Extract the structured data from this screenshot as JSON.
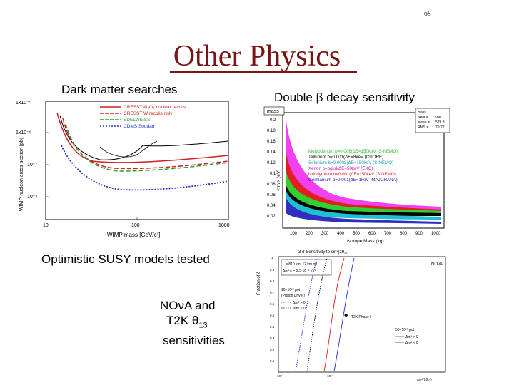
{
  "slide": {
    "page_number": "65",
    "title": "Other Physics",
    "dark_matter_label": "Dark matter searches",
    "double_beta_label": "Double β decay sensitivity",
    "susy_label": "Optimistic SUSY models tested",
    "nova_line1": "NOνA and",
    "nova_line2": "T2K θ",
    "nova_line2_sub": "13",
    "nova_line3": "sensitivities",
    "title_color": "#7a1414"
  },
  "dm_plot": {
    "y_axis_label": "WIMP-nucleon cross-section [pb]",
    "x_axis_label": "WIMP mass [GeV/c²]",
    "x_ticks": [
      "10",
      "100",
      "1000"
    ],
    "y_ticks": [
      "1x10⁻⁵",
      "1x10⁻⁶",
      "10⁻⁷",
      "10⁻⁸"
    ],
    "legend": [
      {
        "name": "CRESST Al₂O₃ nuclear recoils",
        "color": "#d02020",
        "style": "solid"
      },
      {
        "name": "CRESST W  recoils only",
        "color": "#d02020",
        "style": "dashed"
      },
      {
        "name": "EDELWEISS",
        "color": "#30a030",
        "style": "dashed"
      },
      {
        "name": "CDMS Soudan",
        "color": "#2030c0",
        "style": "dotted"
      }
    ]
  },
  "dbd_plot": {
    "title_box": "mass",
    "x_axis_label": "Isotope Mass (kg)",
    "y_axis_label": "<mν> (eV)",
    "x_ticks": [
      "100",
      "200",
      "300",
      "400",
      "500",
      "600",
      "700",
      "800",
      "900",
      "1000"
    ],
    "y_ticks": [
      "0.2",
      "0.18",
      "0.16",
      "0.14",
      "0.12",
      "0.1",
      "0.08",
      "0.06",
      "0.04",
      "0.02"
    ],
    "stats": [
      {
        "k": "mass",
        "v": ""
      },
      {
        "k": "Nent =",
        "v": "990"
      },
      {
        "k": "Mean =",
        "v": "579.3"
      },
      {
        "k": "RMS =",
        "v": "79.72"
      }
    ],
    "legend": [
      {
        "name": "Molybdenum b=0.006(ΔE=150keV (S-NEMO)",
        "color": "#30c030"
      },
      {
        "name": "Tellurium b=0.001(ΔE=8keV (CUORE)",
        "color": "#000000"
      },
      {
        "name": "Selenium b=0.0008(ΔE=150keV (S-NEMO)",
        "color": "#20c0d0"
      },
      {
        "name": "Xenon b=bgkd(ΔE=50keV (EXO)",
        "color": "#e020e0"
      },
      {
        "name": "Neodymium b=0.001(ΔE=150keV (S-NEMO)",
        "color": "#e02020"
      },
      {
        "name": "Germanium b=0.001(ΔE=1keV (MAJORANA)",
        "color": "#2020c0"
      }
    ]
  },
  "nova_plot": {
    "title": "3 σ Sensitivity to sin²(2θ₁₃)",
    "y_axis_label": "Fraction of δ",
    "x_axis_label": "sin²(2θ₁₃)",
    "tag": "NOνA",
    "info_lines": [
      "L = 810 km, 12 km off",
      "Δm²₃₂ = 2.5·10⁻³ eV²"
    ],
    "pot_line1": "10×10²⁰ pot",
    "pot_line1b": "(Proton Driver)",
    "pot_line2": "50×10²⁰ pot",
    "legend_a": [
      "Δm² > 0",
      "Δm² < 0"
    ],
    "legend_b": [
      "Δm² > 0",
      "Δm² < 0"
    ],
    "t2k_label": "T2K Phase I",
    "y_ticks": [
      "1",
      "0.9",
      "0.8",
      "0.7",
      "0.6",
      "0.5",
      "0.4",
      "0.3",
      "0.2",
      "0.1"
    ],
    "x_ticks": [
      "10⁻³",
      "10⁻²"
    ]
  }
}
